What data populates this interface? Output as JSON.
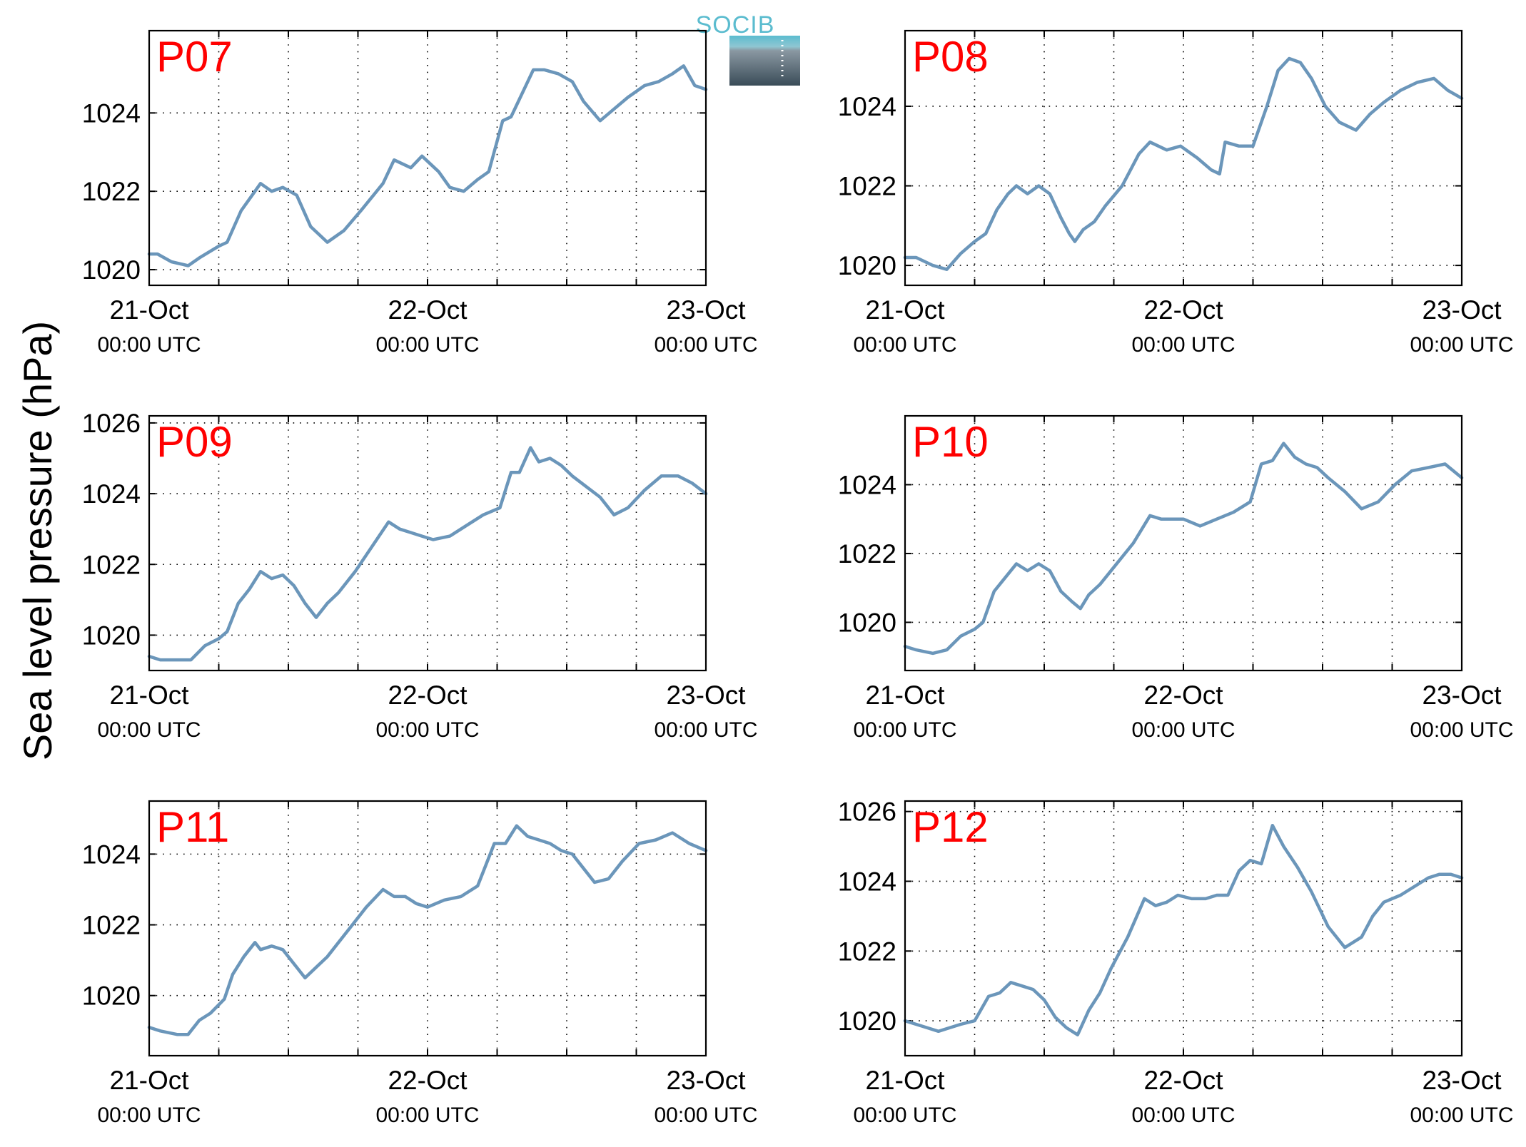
{
  "figure": {
    "ylabel": "Sea level pressure (hPa)",
    "logo_text": "SOCIB",
    "title_color": "#ff0000",
    "line_color": "#6b96ba",
    "logo_top_color": "#5bbccf",
    "logo_bottom_color": "#3a4c58"
  },
  "chart_data": [
    {
      "type": "line",
      "title": "P07",
      "x_unit": "days since 21-Oct 00:00 UTC",
      "x_ticks": [
        {
          "x": 0,
          "label": "21-Oct",
          "sublabel": "00:00 UTC"
        },
        {
          "x": 1,
          "label": "22-Oct",
          "sublabel": "00:00 UTC"
        },
        {
          "x": 2,
          "label": "23-Oct",
          "sublabel": "00:00 UTC"
        }
      ],
      "xlim": [
        0,
        2
      ],
      "ylim": [
        1019.6,
        1026.1
      ],
      "yticks": [
        1020,
        1022,
        1024
      ],
      "grid": true,
      "series": [
        {
          "name": "",
          "x": [
            0,
            0.03,
            0.08,
            0.14,
            0.18,
            0.25,
            0.28,
            0.33,
            0.38,
            0.4,
            0.44,
            0.48,
            0.53,
            0.58,
            0.64,
            0.7,
            0.76,
            0.84,
            0.88,
            0.94,
            0.98,
            1.04,
            1.08,
            1.13,
            1.18,
            1.22,
            1.27,
            1.3,
            1.32,
            1.38,
            1.42,
            1.47,
            1.52,
            1.56,
            1.62,
            1.67,
            1.72,
            1.78,
            1.83,
            1.88,
            1.92,
            1.96,
            2.0
          ],
          "values": [
            1020.4,
            1020.4,
            1020.2,
            1020.1,
            1020.3,
            1020.6,
            1020.7,
            1021.5,
            1022.0,
            1022.2,
            1022.0,
            1022.1,
            1021.9,
            1021.1,
            1020.7,
            1021.0,
            1021.5,
            1022.2,
            1022.8,
            1022.6,
            1022.9,
            1022.5,
            1022.1,
            1022.0,
            1022.3,
            1022.5,
            1023.8,
            1023.9,
            1024.2,
            1025.1,
            1025.1,
            1025.0,
            1024.8,
            1024.3,
            1023.8,
            1024.1,
            1024.4,
            1024.7,
            1024.8,
            1025.0,
            1025.2,
            1024.7,
            1024.6
          ]
        }
      ]
    },
    {
      "type": "line",
      "title": "P08",
      "x_unit": "days since 21-Oct 00:00 UTC",
      "x_ticks": [
        {
          "x": 0,
          "label": "21-Oct",
          "sublabel": "00:00 UTC"
        },
        {
          "x": 1,
          "label": "22-Oct",
          "sublabel": "00:00 UTC"
        },
        {
          "x": 2,
          "label": "23-Oct",
          "sublabel": "00:00 UTC"
        }
      ],
      "xlim": [
        0,
        2
      ],
      "ylim": [
        1019.5,
        1025.9
      ],
      "yticks": [
        1020,
        1022,
        1024
      ],
      "grid": true,
      "series": [
        {
          "name": "",
          "x": [
            0,
            0.04,
            0.1,
            0.15,
            0.2,
            0.25,
            0.29,
            0.33,
            0.37,
            0.4,
            0.44,
            0.48,
            0.52,
            0.56,
            0.59,
            0.61,
            0.64,
            0.68,
            0.72,
            0.78,
            0.84,
            0.88,
            0.94,
            0.99,
            1.05,
            1.1,
            1.13,
            1.15,
            1.2,
            1.25,
            1.28,
            1.3,
            1.34,
            1.38,
            1.42,
            1.46,
            1.51,
            1.56,
            1.62,
            1.67,
            1.72,
            1.78,
            1.84,
            1.9,
            1.95,
            2.0
          ],
          "values": [
            1020.2,
            1020.2,
            1020.0,
            1019.9,
            1020.3,
            1020.6,
            1020.8,
            1021.4,
            1021.8,
            1022.0,
            1021.8,
            1022.0,
            1021.8,
            1021.2,
            1020.8,
            1020.6,
            1020.9,
            1021.1,
            1021.5,
            1022.0,
            1022.8,
            1023.1,
            1022.9,
            1023.0,
            1022.7,
            1022.4,
            1022.3,
            1023.1,
            1023.0,
            1023.0,
            1023.6,
            1024.0,
            1024.9,
            1025.2,
            1025.1,
            1024.7,
            1024.0,
            1023.6,
            1023.4,
            1023.8,
            1024.1,
            1024.4,
            1024.6,
            1024.7,
            1024.4,
            1024.2
          ]
        }
      ]
    },
    {
      "type": "line",
      "title": "P09",
      "x_unit": "days since 21-Oct 00:00 UTC",
      "x_ticks": [
        {
          "x": 0,
          "label": "21-Oct",
          "sublabel": "00:00 UTC"
        },
        {
          "x": 1,
          "label": "22-Oct",
          "sublabel": "00:00 UTC"
        },
        {
          "x": 2,
          "label": "23-Oct",
          "sublabel": "00:00 UTC"
        }
      ],
      "xlim": [
        0,
        2
      ],
      "ylim": [
        1019.0,
        1026.2
      ],
      "yticks": [
        1020,
        1022,
        1024,
        1026
      ],
      "grid": true,
      "series": [
        {
          "name": "",
          "x": [
            0,
            0.04,
            0.1,
            0.15,
            0.2,
            0.25,
            0.28,
            0.32,
            0.36,
            0.4,
            0.44,
            0.48,
            0.52,
            0.56,
            0.6,
            0.64,
            0.68,
            0.74,
            0.8,
            0.86,
            0.9,
            0.94,
            0.98,
            1.02,
            1.08,
            1.14,
            1.2,
            1.26,
            1.3,
            1.33,
            1.37,
            1.4,
            1.44,
            1.48,
            1.52,
            1.57,
            1.62,
            1.67,
            1.72,
            1.78,
            1.84,
            1.9,
            1.95,
            2.0
          ],
          "values": [
            1019.4,
            1019.3,
            1019.3,
            1019.3,
            1019.7,
            1019.9,
            1020.1,
            1020.9,
            1021.3,
            1021.8,
            1021.6,
            1021.7,
            1021.4,
            1020.9,
            1020.5,
            1020.9,
            1021.2,
            1021.8,
            1022.5,
            1023.2,
            1023.0,
            1022.9,
            1022.8,
            1022.7,
            1022.8,
            1023.1,
            1023.4,
            1023.6,
            1024.6,
            1024.6,
            1025.3,
            1024.9,
            1025.0,
            1024.8,
            1024.5,
            1024.2,
            1023.9,
            1023.4,
            1023.6,
            1024.1,
            1024.5,
            1024.5,
            1024.3,
            1024.0
          ]
        }
      ]
    },
    {
      "type": "line",
      "title": "P10",
      "x_unit": "days since 21-Oct 00:00 UTC",
      "x_ticks": [
        {
          "x": 0,
          "label": "21-Oct",
          "sublabel": "00:00 UTC"
        },
        {
          "x": 1,
          "label": "22-Oct",
          "sublabel": "00:00 UTC"
        },
        {
          "x": 2,
          "label": "23-Oct",
          "sublabel": "00:00 UTC"
        }
      ],
      "xlim": [
        0,
        2
      ],
      "ylim": [
        1018.6,
        1026.0
      ],
      "yticks": [
        1020,
        1022,
        1024
      ],
      "grid": true,
      "series": [
        {
          "name": "",
          "x": [
            0,
            0.04,
            0.1,
            0.15,
            0.2,
            0.25,
            0.28,
            0.32,
            0.36,
            0.4,
            0.44,
            0.48,
            0.52,
            0.56,
            0.6,
            0.63,
            0.66,
            0.7,
            0.76,
            0.82,
            0.88,
            0.92,
            0.96,
            1.0,
            1.06,
            1.12,
            1.18,
            1.24,
            1.28,
            1.32,
            1.36,
            1.4,
            1.44,
            1.48,
            1.52,
            1.58,
            1.64,
            1.7,
            1.76,
            1.82,
            1.88,
            1.94,
            2.0
          ],
          "values": [
            1019.3,
            1019.2,
            1019.1,
            1019.2,
            1019.6,
            1019.8,
            1020.0,
            1020.9,
            1021.3,
            1021.7,
            1021.5,
            1021.7,
            1021.5,
            1020.9,
            1020.6,
            1020.4,
            1020.8,
            1021.1,
            1021.7,
            1022.3,
            1023.1,
            1023.0,
            1023.0,
            1023.0,
            1022.8,
            1023.0,
            1023.2,
            1023.5,
            1024.6,
            1024.7,
            1025.2,
            1024.8,
            1024.6,
            1024.5,
            1024.2,
            1023.8,
            1023.3,
            1023.5,
            1024.0,
            1024.4,
            1024.5,
            1024.6,
            1024.2
          ]
        }
      ]
    },
    {
      "type": "line",
      "title": "P11",
      "x_unit": "days since 21-Oct 00:00 UTC",
      "x_ticks": [
        {
          "x": 0,
          "label": "21-Oct",
          "sublabel": "00:00 UTC"
        },
        {
          "x": 1,
          "label": "22-Oct",
          "sublabel": "00:00 UTC"
        },
        {
          "x": 2,
          "label": "23-Oct",
          "sublabel": "00:00 UTC"
        }
      ],
      "xlim": [
        0,
        2
      ],
      "ylim": [
        1018.3,
        1025.5
      ],
      "yticks": [
        1020,
        1022,
        1024
      ],
      "grid": true,
      "series": [
        {
          "name": "",
          "x": [
            0,
            0.04,
            0.1,
            0.14,
            0.18,
            0.22,
            0.27,
            0.3,
            0.34,
            0.38,
            0.4,
            0.44,
            0.48,
            0.52,
            0.56,
            0.6,
            0.64,
            0.68,
            0.72,
            0.78,
            0.84,
            0.88,
            0.92,
            0.96,
            1.0,
            1.06,
            1.12,
            1.18,
            1.24,
            1.28,
            1.32,
            1.36,
            1.4,
            1.44,
            1.48,
            1.52,
            1.56,
            1.6,
            1.65,
            1.7,
            1.76,
            1.82,
            1.88,
            1.94,
            2.0
          ],
          "values": [
            1019.1,
            1019.0,
            1018.9,
            1018.9,
            1019.3,
            1019.5,
            1019.9,
            1020.6,
            1021.1,
            1021.5,
            1021.3,
            1021.4,
            1021.3,
            1020.9,
            1020.5,
            1020.8,
            1021.1,
            1021.5,
            1021.9,
            1022.5,
            1023.0,
            1022.8,
            1022.8,
            1022.6,
            1022.5,
            1022.7,
            1022.8,
            1023.1,
            1024.3,
            1024.3,
            1024.8,
            1024.5,
            1024.4,
            1024.3,
            1024.1,
            1024.0,
            1023.6,
            1023.2,
            1023.3,
            1023.8,
            1024.3,
            1024.4,
            1024.6,
            1024.3,
            1024.1
          ]
        }
      ]
    },
    {
      "type": "line",
      "title": "P12",
      "x_unit": "days since 21-Oct 00:00 UTC",
      "x_ticks": [
        {
          "x": 0,
          "label": "21-Oct",
          "sublabel": "00:00 UTC"
        },
        {
          "x": 1,
          "label": "22-Oct",
          "sublabel": "00:00 UTC"
        },
        {
          "x": 2,
          "label": "23-Oct",
          "sublabel": "00:00 UTC"
        }
      ],
      "xlim": [
        0,
        2
      ],
      "ylim": [
        1019.0,
        1026.3
      ],
      "yticks": [
        1020,
        1022,
        1024,
        1026
      ],
      "grid": true,
      "series": [
        {
          "name": "",
          "x": [
            0,
            0.04,
            0.08,
            0.12,
            0.16,
            0.2,
            0.25,
            0.3,
            0.34,
            0.38,
            0.42,
            0.46,
            0.5,
            0.54,
            0.58,
            0.62,
            0.66,
            0.7,
            0.74,
            0.8,
            0.86,
            0.9,
            0.94,
            0.98,
            1.03,
            1.08,
            1.12,
            1.16,
            1.2,
            1.24,
            1.28,
            1.32,
            1.36,
            1.41,
            1.46,
            1.52,
            1.58,
            1.64,
            1.68,
            1.72,
            1.78,
            1.84,
            1.88,
            1.92,
            1.96,
            2.0
          ],
          "values": [
            1020.0,
            1019.9,
            1019.8,
            1019.7,
            1019.8,
            1019.9,
            1020.0,
            1020.7,
            1020.8,
            1021.1,
            1021.0,
            1020.9,
            1020.6,
            1020.1,
            1019.8,
            1019.6,
            1020.3,
            1020.8,
            1021.5,
            1022.4,
            1023.5,
            1023.3,
            1023.4,
            1023.6,
            1023.5,
            1023.5,
            1023.6,
            1023.6,
            1024.3,
            1024.6,
            1024.5,
            1025.6,
            1025.0,
            1024.4,
            1023.7,
            1022.7,
            1022.1,
            1022.4,
            1023.0,
            1023.4,
            1023.6,
            1023.9,
            1024.1,
            1024.2,
            1024.2,
            1024.1
          ]
        }
      ]
    }
  ]
}
